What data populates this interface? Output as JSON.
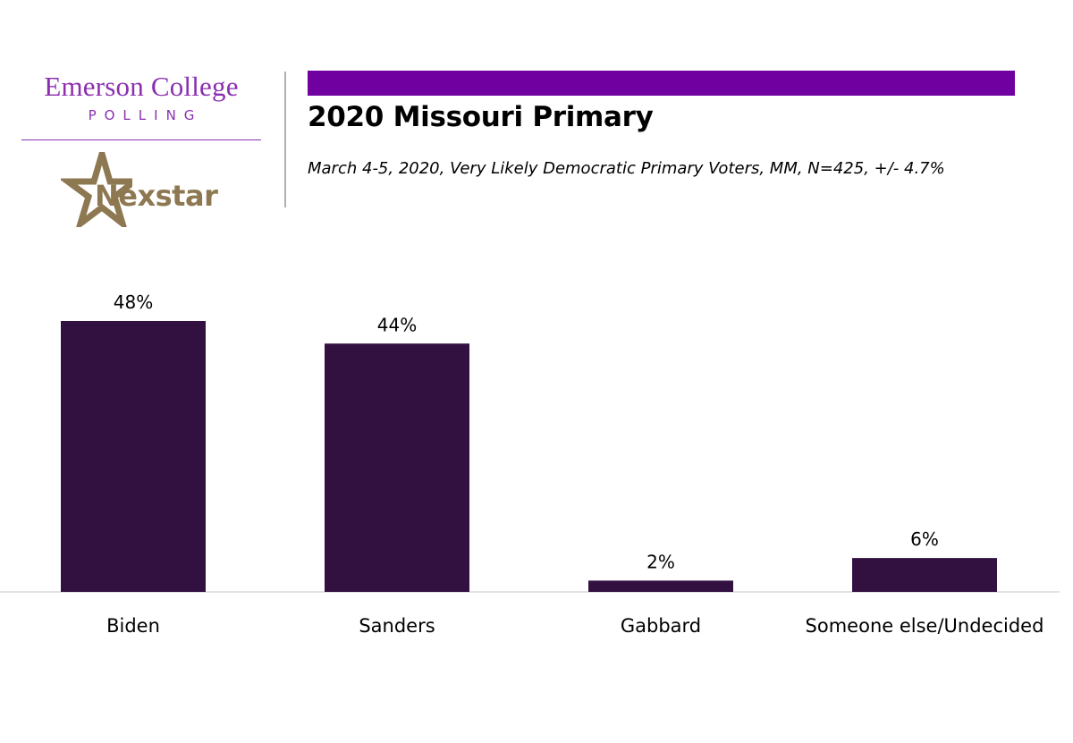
{
  "branding": {
    "org_name": "Emerson College",
    "org_sub": "POLLING",
    "partner": "Nexstar",
    "colors": {
      "org": "#8a2fb0",
      "partner": "#8d7852",
      "accent": "#7000a0"
    }
  },
  "header": {
    "title": "2020 Missouri Primary",
    "subtitle": "March 4-5, 2020, Very Likely Democratic Primary Voters, MM,  N=425, +/- 4.7%"
  },
  "chart_data": {
    "type": "bar",
    "title": "2020 Missouri Primary",
    "categories": [
      "Biden",
      "Sanders",
      "Gabbard",
      "Someone else/Undecided"
    ],
    "values": [
      48,
      44,
      2,
      6
    ],
    "value_labels": [
      "48%",
      "44%",
      "2%",
      "6%"
    ],
    "unit": "%",
    "ylim": [
      0,
      48
    ],
    "grid": false,
    "legend": "none",
    "bar_color": "#321040"
  }
}
